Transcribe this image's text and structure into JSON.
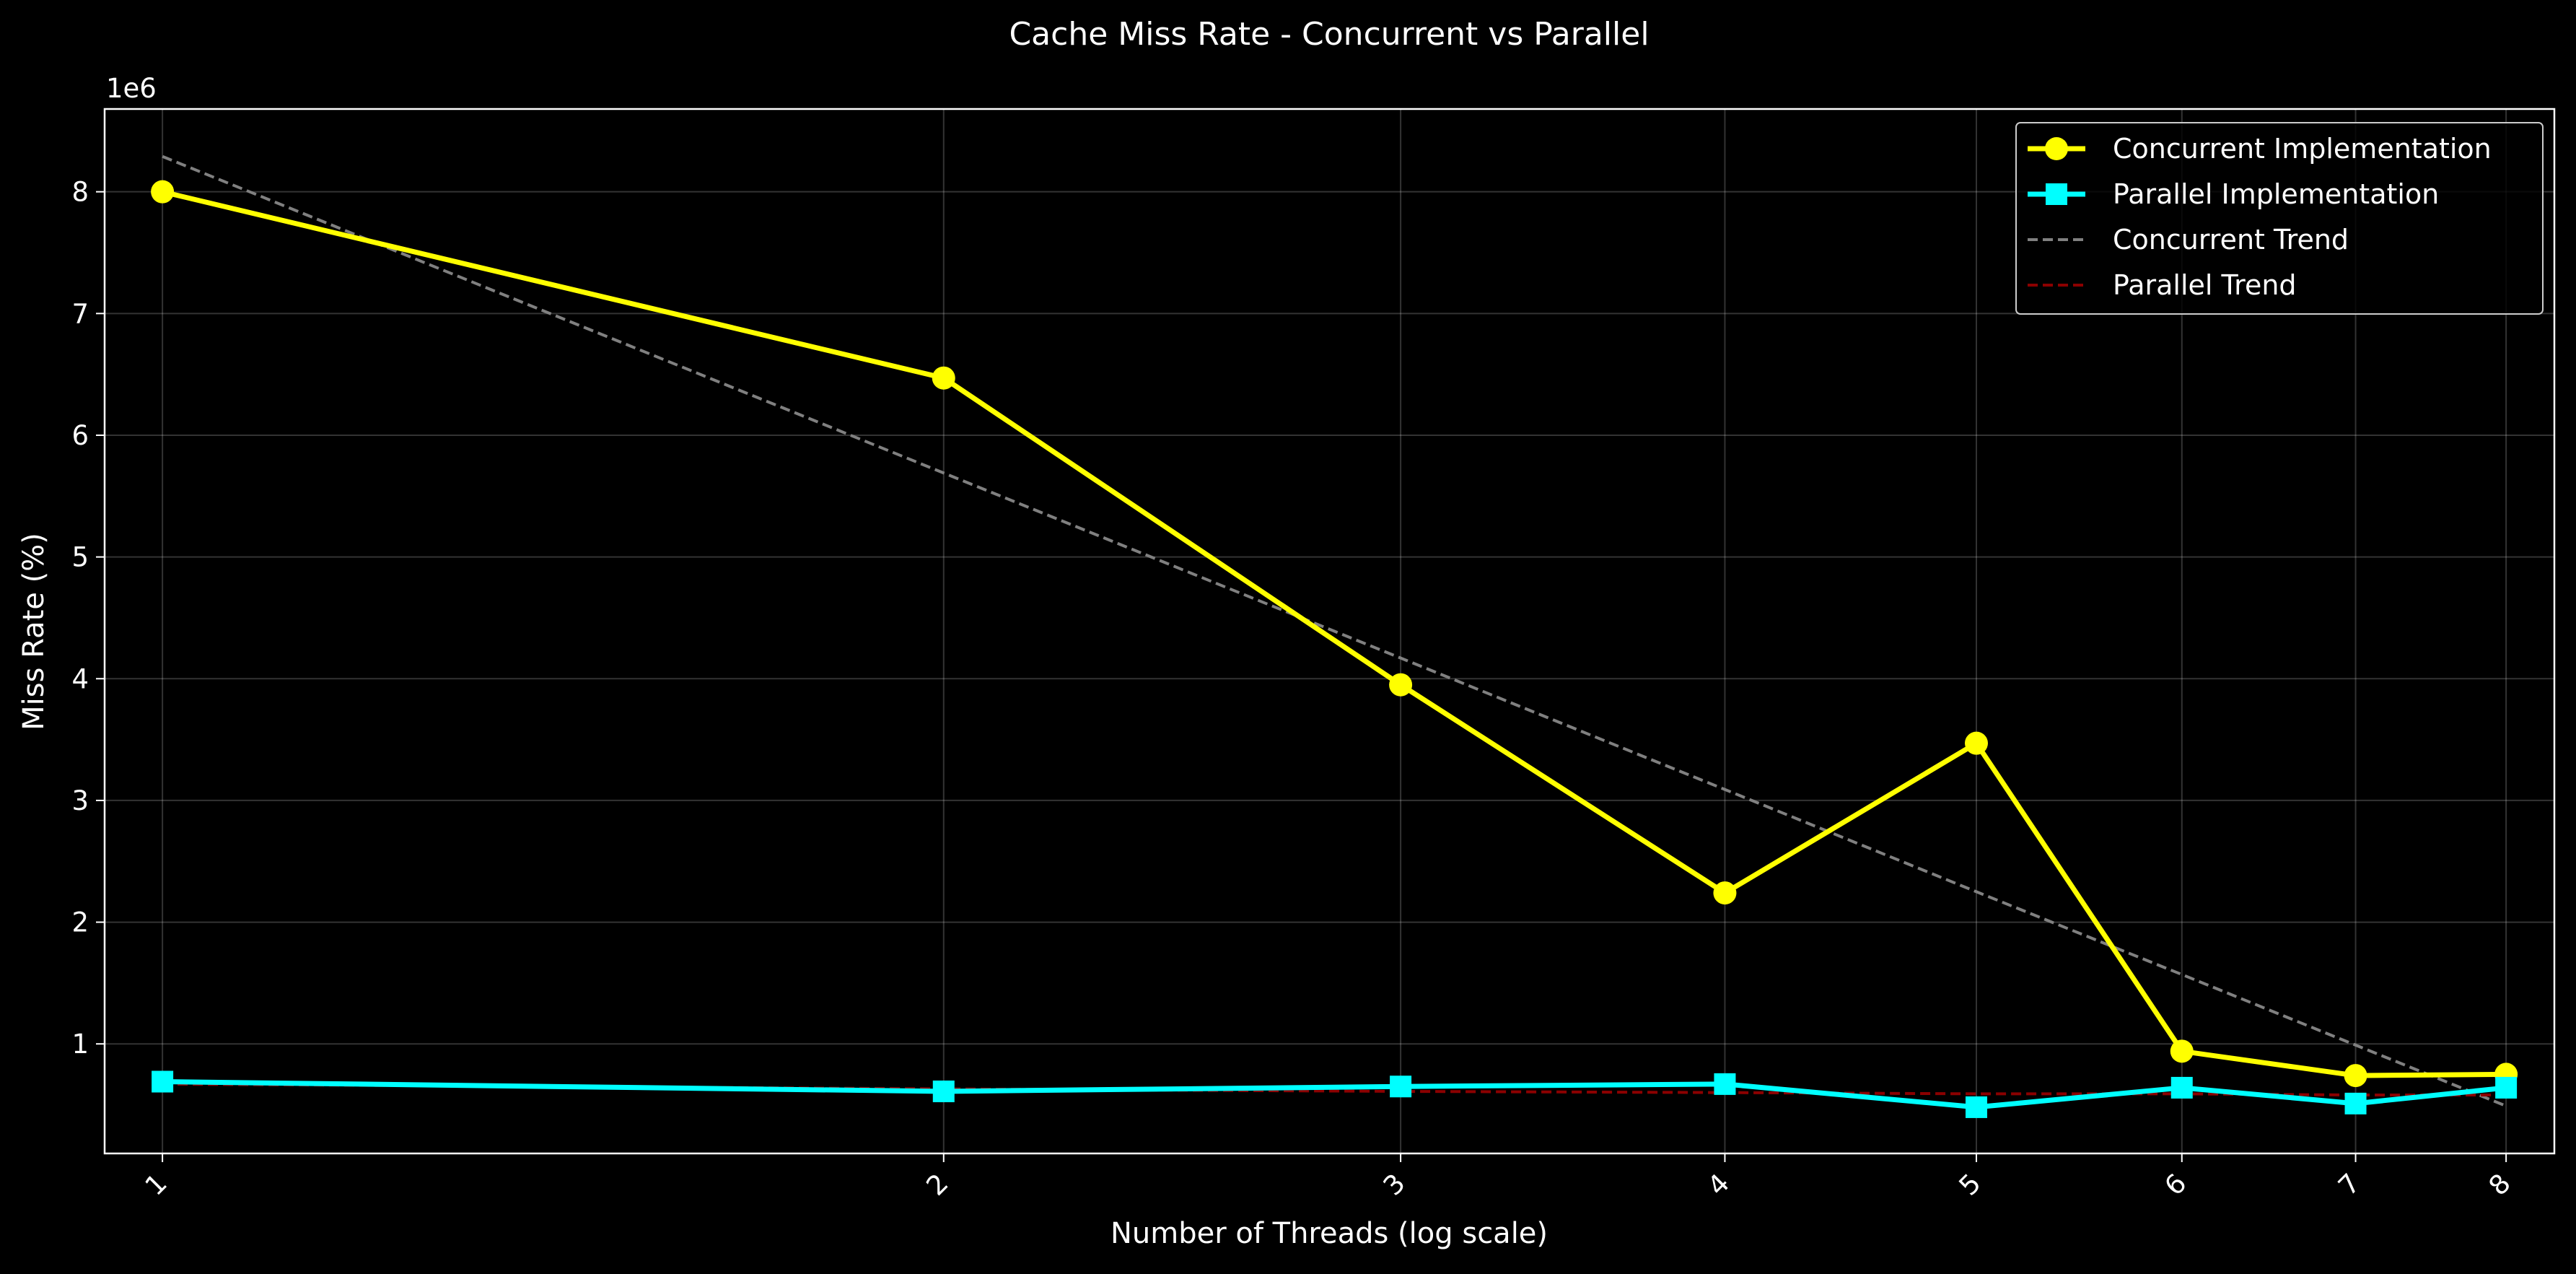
{
  "chart_data": {
    "type": "line",
    "title": "Cache Miss Rate - Concurrent vs Parallel",
    "xlabel": "Number of Threads (log scale)",
    "ylabel": "Miss Rate (%)",
    "y_offset_text": "1e6",
    "x_scale": "log",
    "x": [
      1,
      2,
      3,
      4,
      5,
      6,
      7,
      8
    ],
    "x_tick_labels": [
      "1",
      "2",
      "3",
      "4",
      "5",
      "6",
      "7",
      "8"
    ],
    "y_ticks": [
      1,
      2,
      3,
      4,
      5,
      6,
      7,
      8
    ],
    "y_tick_labels": [
      "1",
      "2",
      "3",
      "4",
      "5",
      "6",
      "7",
      "8"
    ],
    "ylim": [
      0.1,
      8.68
    ],
    "y_multiplier": 1000000,
    "grid": true,
    "legend_position": "top-right",
    "series": [
      {
        "name": "Concurrent Implementation",
        "color": "#ffff00",
        "marker": "circle",
        "line_style": "solid",
        "values": [
          8.0,
          6.47,
          3.95,
          2.24,
          3.47,
          0.94,
          0.74,
          0.75
        ]
      },
      {
        "name": "Parallel Implementation",
        "color": "#00ffff",
        "marker": "square",
        "line_style": "solid",
        "values": [
          0.69,
          0.61,
          0.65,
          0.67,
          0.48,
          0.64,
          0.51,
          0.64
        ]
      },
      {
        "name": "Concurrent Trend",
        "color": "#808080",
        "marker": "none",
        "line_style": "dashed",
        "values": [
          8.29,
          5.69,
          4.17,
          3.09,
          2.25,
          1.57,
          0.99,
          0.49
        ]
      },
      {
        "name": "Parallel Trend",
        "color": "#8b0000",
        "marker": "none",
        "line_style": "dashed",
        "values": [
          0.67,
          0.63,
          0.61,
          0.6,
          0.59,
          0.59,
          0.58,
          0.58
        ]
      }
    ]
  }
}
